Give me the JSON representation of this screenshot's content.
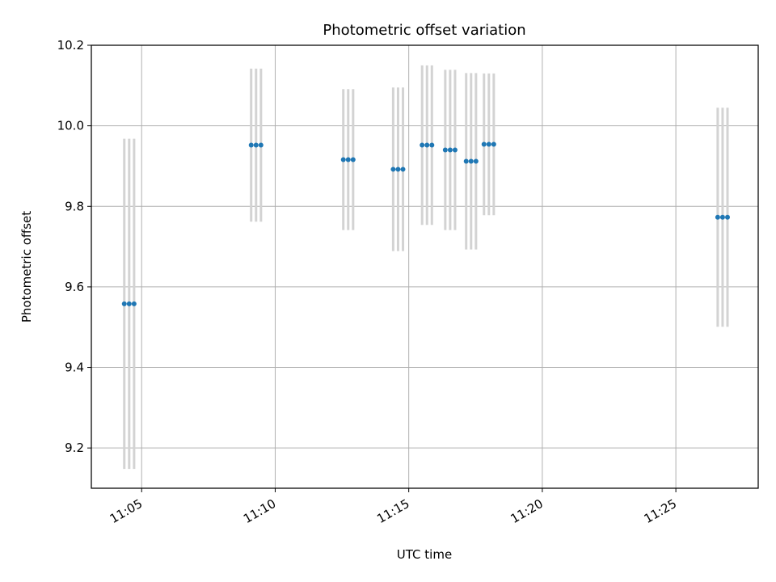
{
  "chart_data": {
    "type": "scatter",
    "title": "Photometric offset variation",
    "xlabel": "UTC time",
    "ylabel": "Photometric offset",
    "xlim": [
      "11:03:07",
      "11:28:05"
    ],
    "ylim": [
      9.1,
      10.2
    ],
    "x_ticks": [
      {
        "time": "11:05:00",
        "label": "11:05"
      },
      {
        "time": "11:10:00",
        "label": "11:10"
      },
      {
        "time": "11:15:00",
        "label": "11:15"
      },
      {
        "time": "11:20:00",
        "label": "11:20"
      },
      {
        "time": "11:25:00",
        "label": "11:25"
      }
    ],
    "y_ticks": [
      {
        "value": 9.2,
        "label": "9.2"
      },
      {
        "value": 9.4,
        "label": "9.4"
      },
      {
        "value": 9.6,
        "label": "9.6"
      },
      {
        "value": 9.8,
        "label": "9.8"
      },
      {
        "value": 10.0,
        "label": "10.0"
      },
      {
        "value": 10.2,
        "label": "10.2"
      }
    ],
    "grid": true,
    "marker_color": "#1f77b4",
    "errorbar_color": "#d3d3d3",
    "points": [
      {
        "x": "11:04:21",
        "y": 9.558,
        "yerr": 0.41
      },
      {
        "x": "11:04:32",
        "y": 9.558,
        "yerr": 0.41
      },
      {
        "x": "11:04:43",
        "y": 9.558,
        "yerr": 0.41
      },
      {
        "x": "11:09:06",
        "y": 9.952,
        "yerr": 0.19
      },
      {
        "x": "11:09:17",
        "y": 9.952,
        "yerr": 0.19
      },
      {
        "x": "11:09:28",
        "y": 9.952,
        "yerr": 0.19
      },
      {
        "x": "11:12:33",
        "y": 9.916,
        "yerr": 0.175
      },
      {
        "x": "11:12:44",
        "y": 9.916,
        "yerr": 0.175
      },
      {
        "x": "11:12:55",
        "y": 9.916,
        "yerr": 0.175
      },
      {
        "x": "11:14:25",
        "y": 9.892,
        "yerr": 0.203
      },
      {
        "x": "11:14:36",
        "y": 9.892,
        "yerr": 0.203
      },
      {
        "x": "11:14:47",
        "y": 9.892,
        "yerr": 0.203
      },
      {
        "x": "11:15:30",
        "y": 9.952,
        "yerr": 0.198
      },
      {
        "x": "11:15:41",
        "y": 9.952,
        "yerr": 0.198
      },
      {
        "x": "11:15:52",
        "y": 9.952,
        "yerr": 0.198
      },
      {
        "x": "11:16:22",
        "y": 9.94,
        "yerr": 0.199
      },
      {
        "x": "11:16:33",
        "y": 9.94,
        "yerr": 0.199
      },
      {
        "x": "11:16:44",
        "y": 9.94,
        "yerr": 0.199
      },
      {
        "x": "11:17:09",
        "y": 9.912,
        "yerr": 0.219
      },
      {
        "x": "11:17:20",
        "y": 9.912,
        "yerr": 0.219
      },
      {
        "x": "11:17:31",
        "y": 9.912,
        "yerr": 0.219
      },
      {
        "x": "11:17:49",
        "y": 9.954,
        "yerr": 0.176
      },
      {
        "x": "11:18:00",
        "y": 9.954,
        "yerr": 0.176
      },
      {
        "x": "11:18:11",
        "y": 9.954,
        "yerr": 0.176
      },
      {
        "x": "11:26:34",
        "y": 9.773,
        "yerr": 0.272
      },
      {
        "x": "11:26:45",
        "y": 9.773,
        "yerr": 0.272
      },
      {
        "x": "11:26:56",
        "y": 9.773,
        "yerr": 0.272
      }
    ]
  }
}
